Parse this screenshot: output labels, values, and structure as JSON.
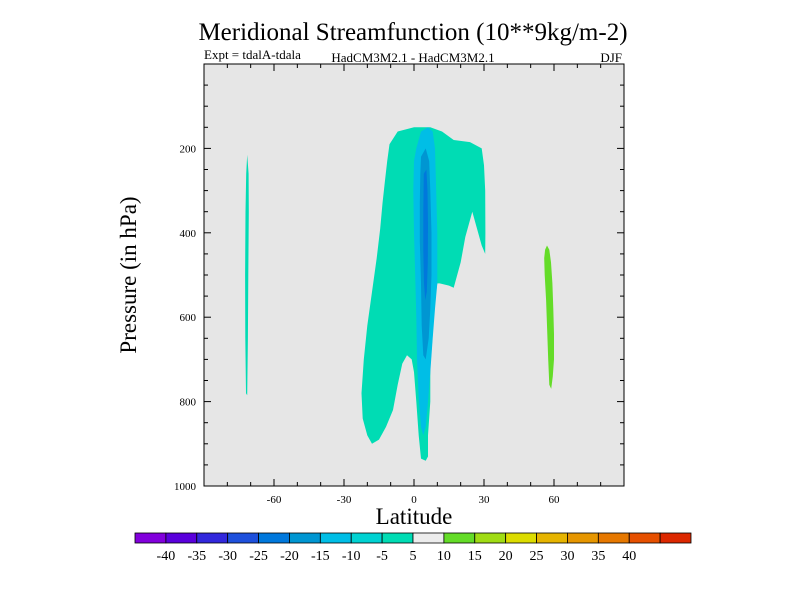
{
  "chart_data": {
    "type": "contour",
    "title": "Meridional Streamfunction (10**9kg/m-2)",
    "subtitle_left": "Expt = tdalA-tdala",
    "subtitle_center": "HadCM3M2.1 - HadCM3M2.1",
    "subtitle_right": "DJF",
    "xlabel": "Latitude",
    "ylabel": "Pressure (in hPa)",
    "xlim": [
      -90,
      90
    ],
    "ylim": [
      1000,
      0
    ],
    "x_ticks": [
      -60,
      -30,
      0,
      30,
      60
    ],
    "y_ticks": [
      200,
      400,
      600,
      800,
      1000
    ],
    "background_color": "#e6e6e6",
    "regions": [
      {
        "name": "region-minus5-to-minus10-sh-highlat",
        "level": "-10 to -5",
        "color": "#00dcb4",
        "points": [
          [
            -71.5,
            215
          ],
          [
            -70.9,
            260
          ],
          [
            -70.8,
            350
          ],
          [
            -71.0,
            500
          ],
          [
            -71.2,
            650
          ],
          [
            -71.5,
            785
          ],
          [
            -72.0,
            780
          ],
          [
            -72.3,
            650
          ],
          [
            -72.4,
            500
          ],
          [
            -72.2,
            350
          ],
          [
            -71.9,
            260
          ]
        ]
      },
      {
        "name": "region-minus5-to-minus10-tropics",
        "level": "-10 to -5",
        "color": "#00dcb4",
        "points": [
          [
            -10.5,
            190
          ],
          [
            -7,
            160
          ],
          [
            0,
            150
          ],
          [
            7,
            150
          ],
          [
            12,
            160
          ],
          [
            17,
            180
          ],
          [
            24,
            185
          ],
          [
            29,
            200
          ],
          [
            30,
            240
          ],
          [
            30.5,
            300
          ],
          [
            30.6,
            400
          ],
          [
            30.5,
            450
          ],
          [
            29,
            430
          ],
          [
            27,
            390
          ],
          [
            25,
            350
          ],
          [
            22,
            410
          ],
          [
            20,
            470
          ],
          [
            17,
            530
          ],
          [
            15,
            525
          ],
          [
            11,
            520
          ],
          [
            10,
            520
          ],
          [
            9,
            560
          ],
          [
            8,
            640
          ],
          [
            7,
            720
          ],
          [
            7,
            800
          ],
          [
            6,
            880
          ],
          [
            6,
            930
          ],
          [
            5,
            940
          ],
          [
            3,
            935
          ],
          [
            2,
            880
          ],
          [
            1,
            800
          ],
          [
            0,
            730
          ],
          [
            -1,
            700
          ],
          [
            -3,
            690
          ],
          [
            -5,
            710
          ],
          [
            -7,
            760
          ],
          [
            -9,
            820
          ],
          [
            -12,
            860
          ],
          [
            -15,
            890
          ],
          [
            -18,
            900
          ],
          [
            -20,
            880
          ],
          [
            -22,
            840
          ],
          [
            -22.5,
            780
          ],
          [
            -21.5,
            700
          ],
          [
            -20,
            620
          ],
          [
            -18,
            540
          ],
          [
            -16,
            460
          ],
          [
            -14.5,
            390
          ],
          [
            -13.5,
            330
          ],
          [
            -12.5,
            280
          ],
          [
            -11.5,
            230
          ]
        ]
      },
      {
        "name": "region-minus10-to-minus15-tropics",
        "level": "-15 to -10",
        "color": "#00bee6",
        "points": [
          [
            1,
            200
          ],
          [
            3,
            160
          ],
          [
            6,
            150
          ],
          [
            8,
            160
          ],
          [
            9,
            200
          ],
          [
            9.5,
            300
          ],
          [
            10,
            400
          ],
          [
            10,
            520
          ],
          [
            9,
            580
          ],
          [
            8,
            650
          ],
          [
            7,
            730
          ],
          [
            6,
            800
          ],
          [
            5,
            860
          ],
          [
            4,
            880
          ],
          [
            3,
            860
          ],
          [
            2,
            790
          ],
          [
            1.3,
            700
          ],
          [
            1,
            600
          ],
          [
            0.5,
            500
          ],
          [
            0,
            400
          ],
          [
            -0.3,
            300
          ],
          [
            0,
            230
          ]
        ]
      },
      {
        "name": "region-minus15-to-minus20-tropics",
        "level": "-20 to -15",
        "color": "#0096d2",
        "points": [
          [
            3,
            220
          ],
          [
            5,
            200
          ],
          [
            6.5,
            230
          ],
          [
            7,
            300
          ],
          [
            7.5,
            400
          ],
          [
            7.5,
            500
          ],
          [
            7,
            580
          ],
          [
            6.3,
            650
          ],
          [
            5,
            700
          ],
          [
            4,
            690
          ],
          [
            3.3,
            620
          ],
          [
            3,
            520
          ],
          [
            2.5,
            420
          ],
          [
            2.5,
            330
          ],
          [
            2.7,
            260
          ]
        ]
      },
      {
        "name": "region-minus20-to-minus25-tropics",
        "level": "-25 to -20",
        "color": "#0078dc",
        "points": [
          [
            4.2,
            260
          ],
          [
            5.3,
            250
          ],
          [
            5.8,
            300
          ],
          [
            6.0,
            380
          ],
          [
            5.9,
            470
          ],
          [
            5.5,
            540
          ],
          [
            4.8,
            560
          ],
          [
            4.3,
            520
          ],
          [
            4.0,
            440
          ],
          [
            4.0,
            350
          ]
        ]
      },
      {
        "name": "region-5-to-10-nh-midlat",
        "level": "5 to 10",
        "color": "#64dc28",
        "points": [
          [
            57,
            430
          ],
          [
            58,
            440
          ],
          [
            58.7,
            470
          ],
          [
            59.3,
            520
          ],
          [
            59.7,
            580
          ],
          [
            60,
            640
          ],
          [
            60,
            700
          ],
          [
            59.5,
            740
          ],
          [
            58.8,
            770
          ],
          [
            58,
            760
          ],
          [
            57.5,
            700
          ],
          [
            57,
            620
          ],
          [
            56.6,
            560
          ],
          [
            56,
            500
          ],
          [
            55.8,
            460
          ],
          [
            56.2,
            440
          ]
        ]
      }
    ],
    "colorbar": {
      "labels": [
        "-40",
        "-35",
        "-30",
        "-25",
        "-20",
        "-15",
        "-10",
        "-5",
        "5",
        "10",
        "15",
        "20",
        "25",
        "30",
        "35",
        "40"
      ],
      "colors": [
        "#8200dc",
        "#5a00dc",
        "#3228dc",
        "#1e50dc",
        "#0078dc",
        "#0096d2",
        "#00bee6",
        "#00d2d2",
        "#00dcb4",
        "#ececec",
        "#64dc28",
        "#a0dc14",
        "#dcdc00",
        "#e6b400",
        "#e69600",
        "#e67800",
        "#e65000",
        "#dc2800"
      ]
    }
  }
}
